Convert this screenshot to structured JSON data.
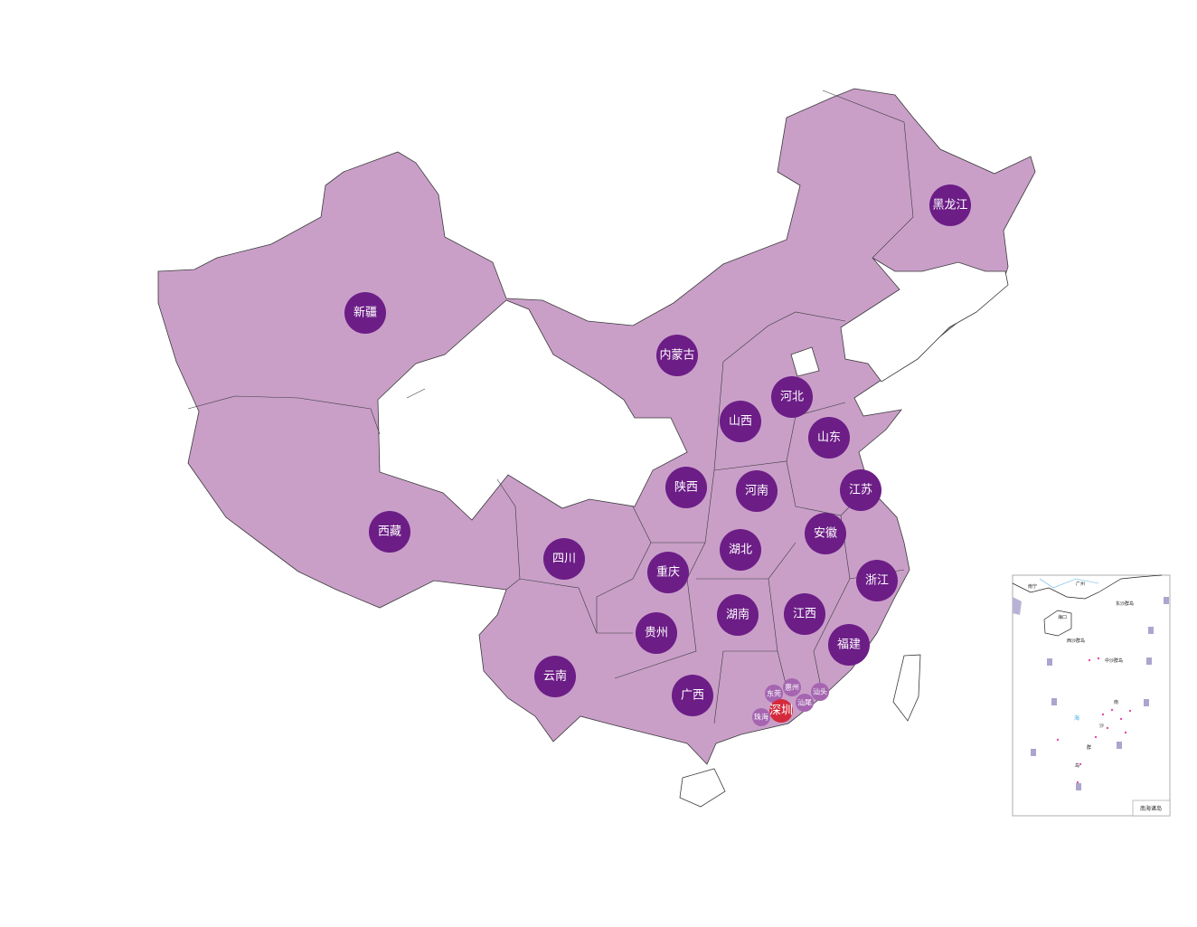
{
  "colors": {
    "region_fill": "#c99fc8",
    "region_border": "#3a3a3a",
    "empty_fill": "#ffffff",
    "marker": "#6c1d86",
    "marker_small": "#a565b0",
    "marker_highlight": "#d42a3c"
  },
  "provinces": [
    {
      "name": "黑龙江"
    },
    {
      "name": "新疆"
    },
    {
      "name": "内蒙古"
    },
    {
      "name": "河北"
    },
    {
      "name": "山西"
    },
    {
      "name": "山东"
    },
    {
      "name": "陕西"
    },
    {
      "name": "河南"
    },
    {
      "name": "江苏"
    },
    {
      "name": "西藏"
    },
    {
      "name": "安徽"
    },
    {
      "name": "四川"
    },
    {
      "name": "湖北"
    },
    {
      "name": "重庆"
    },
    {
      "name": "浙江"
    },
    {
      "name": "湖南"
    },
    {
      "name": "江西"
    },
    {
      "name": "贵州"
    },
    {
      "name": "福建"
    },
    {
      "name": "云南"
    },
    {
      "name": "广西"
    }
  ],
  "cities": [
    {
      "name": "东莞",
      "highlight": false
    },
    {
      "name": "惠州",
      "highlight": false
    },
    {
      "name": "汕头",
      "highlight": false
    },
    {
      "name": "汕尾",
      "highlight": false
    },
    {
      "name": "珠海",
      "highlight": false
    },
    {
      "name": "深圳",
      "highlight": true
    }
  ],
  "inset": {
    "title": "南海诸岛",
    "labels": [
      "南宁",
      "广州",
      "海口",
      "东沙群岛",
      "西沙群岛",
      "中沙群岛",
      "南",
      "海",
      "沙",
      "群",
      "岛"
    ]
  }
}
